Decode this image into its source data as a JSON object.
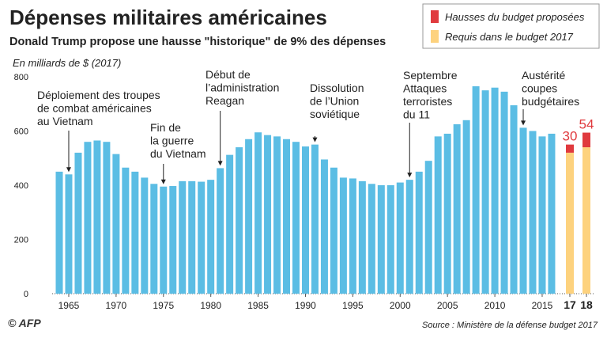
{
  "chart_data": {
    "type": "bar",
    "title": "Dépenses militaires américaines",
    "subtitle": "Donald Trump propose une hausse \"historique\" de 9% des dépenses",
    "y_label": "En milliards de $ (2017)",
    "source": "Source : Ministère de la défense budget 2017",
    "credit": "© AFP",
    "categories": [
      null,
      "1965",
      null,
      null,
      null,
      null,
      "1970",
      null,
      null,
      null,
      null,
      "1975",
      null,
      null,
      null,
      null,
      "1980",
      null,
      null,
      null,
      null,
      "1985",
      null,
      null,
      null,
      null,
      "1990",
      null,
      null,
      null,
      null,
      "1995",
      null,
      null,
      null,
      null,
      "2000",
      null,
      null,
      null,
      null,
      "2005",
      null,
      null,
      null,
      null,
      "2010",
      null,
      null,
      null,
      null,
      "2015",
      null,
      "17",
      "18"
    ],
    "series": [
      {
        "color": "#5bbde4",
        "values": [
          450,
          440,
          520,
          560,
          565,
          560,
          515,
          465,
          450,
          428,
          405,
          395,
          397,
          415,
          415,
          413,
          420,
          463,
          512,
          540,
          570,
          595,
          585,
          580,
          570,
          560,
          543,
          550,
          495,
          465,
          428,
          425,
          415,
          405,
          400,
          400,
          410,
          420,
          450,
          490,
          580,
          590,
          625,
          640,
          765,
          750,
          760,
          745,
          695,
          612,
          600,
          580,
          590,
          null,
          null
        ]
      },
      {
        "name": "Requis dans le budget 2017",
        "color": "#fdd27e",
        "values": [
          null,
          null,
          null,
          null,
          null,
          null,
          null,
          null,
          null,
          null,
          null,
          null,
          null,
          null,
          null,
          null,
          null,
          null,
          null,
          null,
          null,
          null,
          null,
          null,
          null,
          null,
          null,
          null,
          null,
          null,
          null,
          null,
          null,
          null,
          null,
          null,
          null,
          null,
          null,
          null,
          null,
          null,
          null,
          null,
          null,
          null,
          null,
          null,
          null,
          null,
          null,
          null,
          null,
          520,
          540
        ]
      },
      {
        "name": "Hausses du budget proposées",
        "color": "#e03a3e",
        "values": [
          null,
          null,
          null,
          null,
          null,
          null,
          null,
          null,
          null,
          null,
          null,
          null,
          null,
          null,
          null,
          null,
          null,
          null,
          null,
          null,
          null,
          null,
          null,
          null,
          null,
          null,
          null,
          null,
          null,
          null,
          null,
          null,
          null,
          null,
          null,
          null,
          null,
          null,
          null,
          null,
          null,
          null,
          null,
          null,
          null,
          null,
          null,
          null,
          null,
          null,
          null,
          null,
          null,
          30,
          54
        ]
      }
    ],
    "ylim": [
      0,
      800
    ],
    "yticks": [
      0,
      200,
      400,
      600,
      800
    ],
    "annotations": [
      [
        "Déploiement des troupes",
        "de combat américaines",
        "au Vietnam"
      ],
      [
        "Fin de",
        "la guerre",
        "du Vietnam"
      ],
      [
        "Début de",
        "l’administration",
        "Reagan"
      ],
      [
        "Dissolution",
        "de l’Union",
        "soviétique"
      ],
      [
        "Septembre",
        "Attaques",
        "terroristes",
        "du 11"
      ],
      [
        "Austérité",
        "coupes",
        "budgétaires"
      ]
    ]
  }
}
